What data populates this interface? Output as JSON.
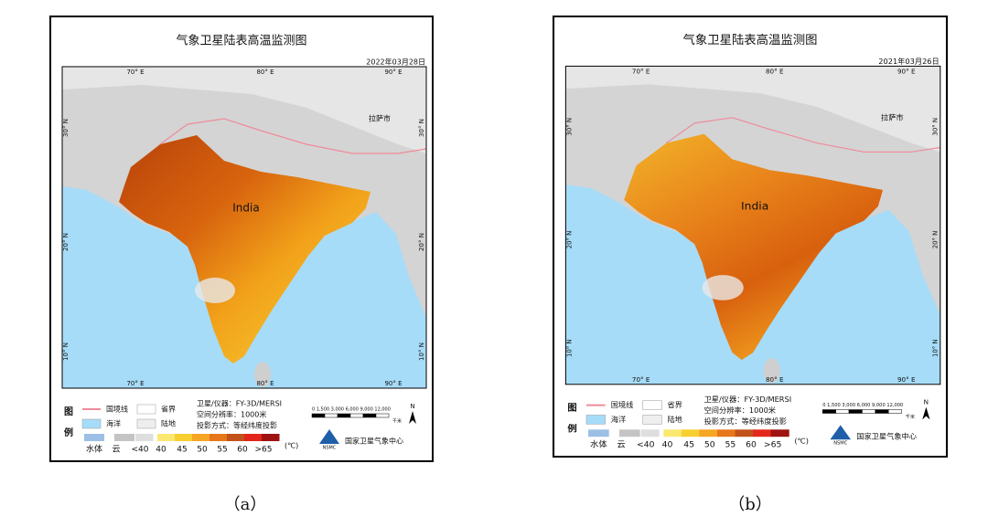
{
  "panels": [
    {
      "caption": "（a）",
      "title": "气象卫星陆表高温监测图",
      "date": "2022年03月28日",
      "lon_labels": [
        "70° E",
        "80° E",
        "90° E"
      ],
      "lat_labels": [
        "30° N",
        "20° N",
        "10° N"
      ],
      "city": "拉萨市",
      "country": "India",
      "legend": {
        "heading": [
          "图",
          "例"
        ],
        "items": [
          "国境线",
          "省界",
          "海洋",
          "陆地"
        ],
        "info": [
          "卫星/仪器：FY-3D/MERSI",
          "空间分辨率：1000米",
          "投影方式：等经纬度投影"
        ],
        "scale": "0 1,500 3,000 6,000 9,000 12,000",
        "scale_unit": "千米",
        "north": "N",
        "classes": [
          "水体",
          "云",
          "<40",
          "40",
          "45",
          "50",
          "55",
          "60",
          ">65"
        ],
        "unit": "(℃)",
        "logo": "NSMC",
        "agency": "国家卫星气象中心"
      }
    },
    {
      "caption": "（b）",
      "title": "气象卫星陆表高温监测图",
      "date": "2021年03月26日",
      "lon_labels": [
        "70° E",
        "80° E",
        "90° E"
      ],
      "lat_labels": [
        "30° N",
        "20° N",
        "10° N"
      ],
      "city": "拉萨市",
      "country": "India",
      "legend": {
        "heading": [
          "图",
          "例"
        ],
        "items": [
          "国境线",
          "省界",
          "海洋",
          "陆地"
        ],
        "info": [
          "卫星/仪器：FY-3D/MERSI",
          "空间分辨率：1000米",
          "投影方式：等经纬度投影"
        ],
        "scale": "0 1,500 3,000 6,000 9,000 12,000",
        "scale_unit": "千米",
        "north": "N",
        "classes": [
          "水体",
          "云",
          "<40",
          "40",
          "45",
          "50",
          "55",
          "60",
          ">65"
        ],
        "unit": "(℃)",
        "logo": "NSMC",
        "agency": "国家卫星气象中心"
      }
    }
  ]
}
